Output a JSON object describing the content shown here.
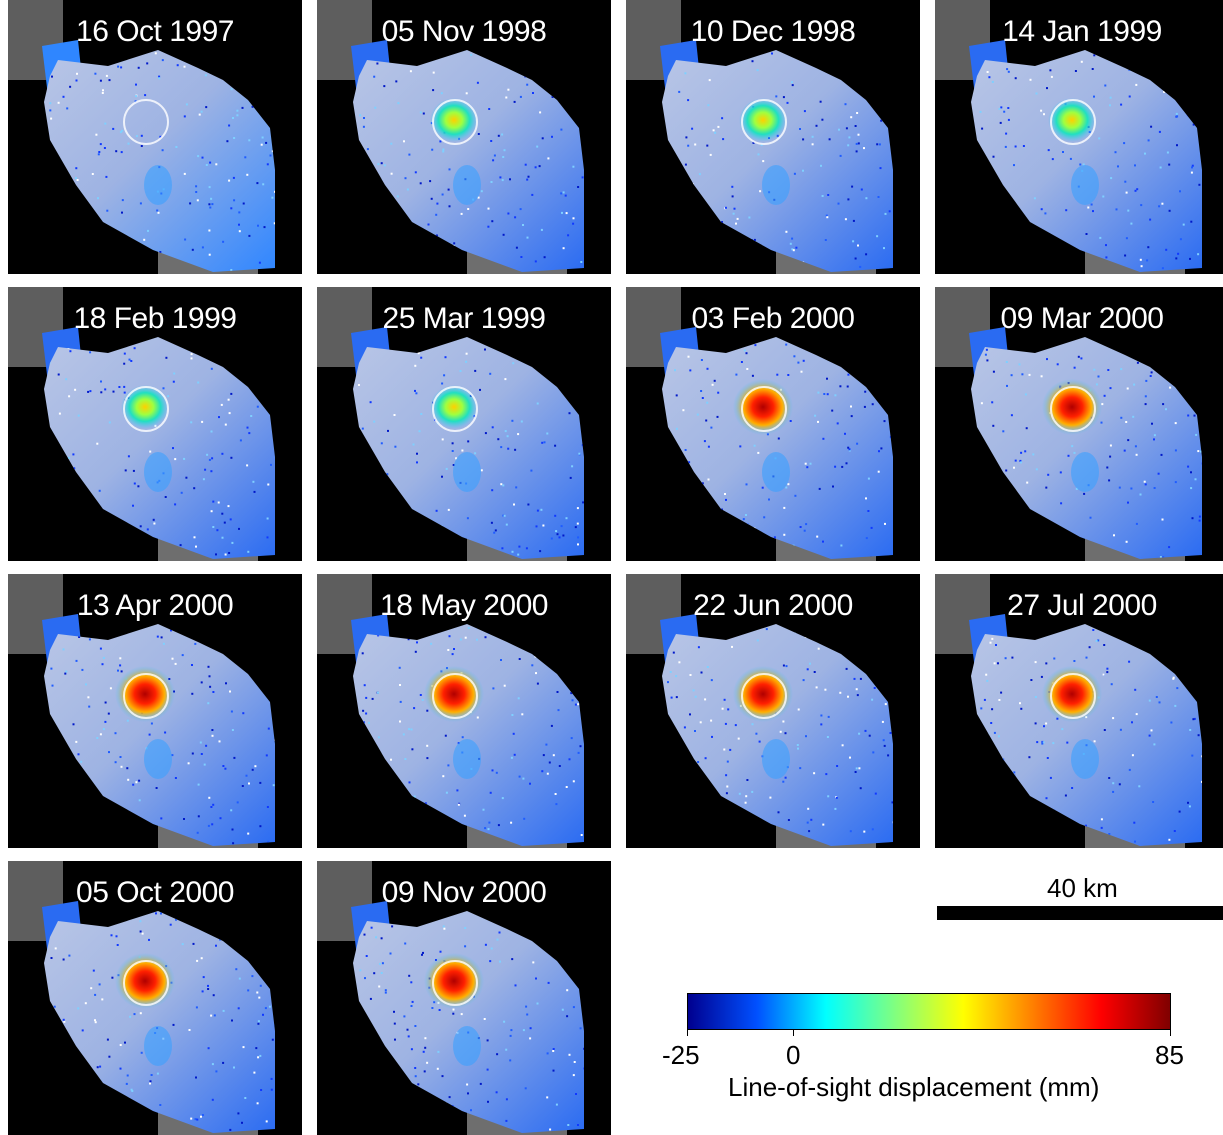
{
  "panels": [
    {
      "date": "16 Oct 1997",
      "uplift": 0.0
    },
    {
      "date": "05 Nov 1998",
      "uplift": 0.42
    },
    {
      "date": "10 Dec 1998",
      "uplift": 0.44
    },
    {
      "date": "14 Jan 1999",
      "uplift": 0.45
    },
    {
      "date": "18 Feb 1999",
      "uplift": 0.52
    },
    {
      "date": "25 Mar 1999",
      "uplift": 0.5
    },
    {
      "date": "03 Feb 2000",
      "uplift": 0.92
    },
    {
      "date": "09 Mar 2000",
      "uplift": 0.93
    },
    {
      "date": "13 Apr 2000",
      "uplift": 0.97
    },
    {
      "date": "18 May 2000",
      "uplift": 0.95
    },
    {
      "date": "22 Jun 2000",
      "uplift": 0.95
    },
    {
      "date": "27 Jul 2000",
      "uplift": 0.96
    },
    {
      "date": "05 Oct 2000",
      "uplift": 0.98
    },
    {
      "date": "09 Nov 2000",
      "uplift": 0.97
    }
  ],
  "scalebar": {
    "label": "40 km"
  },
  "colorbar": {
    "min_label": "-25",
    "zero_label": "0",
    "max_label": "85",
    "title": "Line-of-sight displacement (mm)",
    "min": -25,
    "max": 85,
    "colors": [
      "#00008f",
      "#0050ff",
      "#00ffff",
      "#80ff80",
      "#ffff00",
      "#ff8000",
      "#ff0000",
      "#800000"
    ]
  }
}
